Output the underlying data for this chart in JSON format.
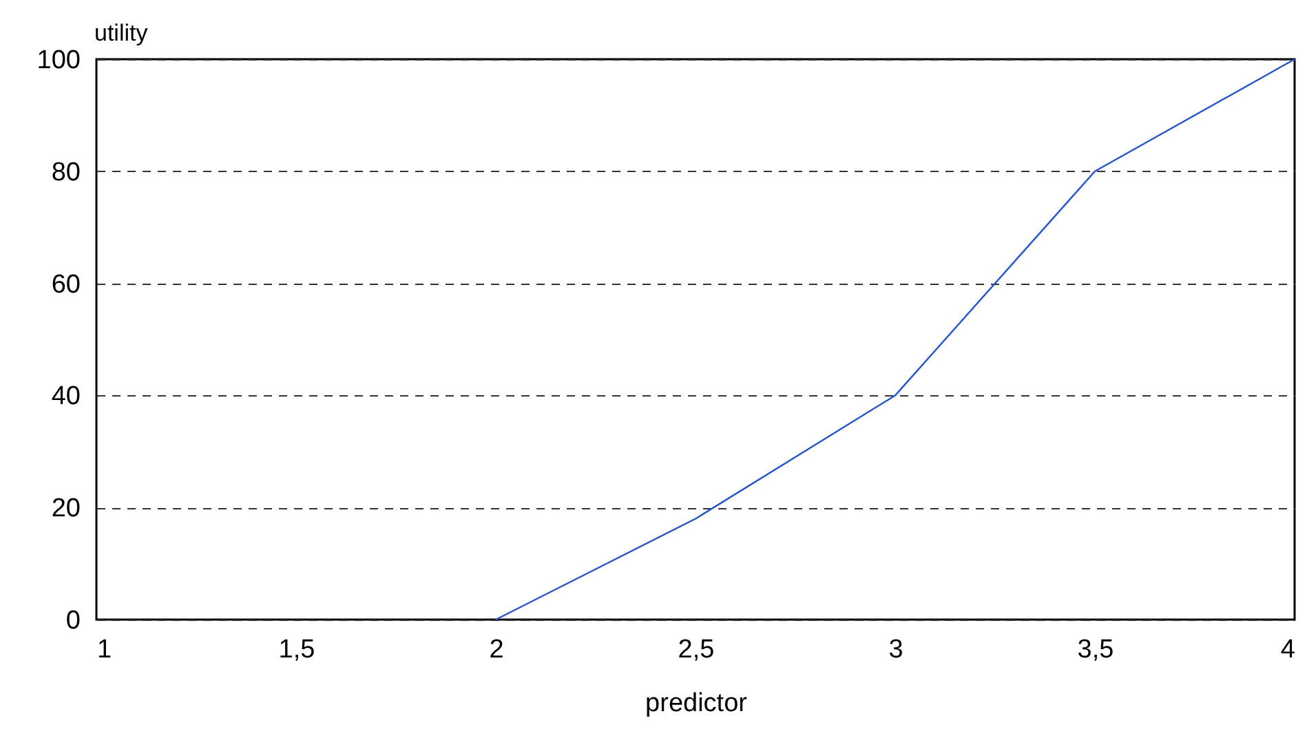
{
  "chart_data": {
    "type": "line",
    "xlabel": "predictor",
    "ylabel": "utility",
    "x": [
      2,
      2.5,
      3,
      3.5,
      4
    ],
    "series": [
      {
        "color": "#2255cc",
        "values": [
          0,
          18,
          40,
          80,
          100
        ]
      }
    ],
    "xlim": [
      1,
      4
    ],
    "xticks": [
      1,
      {
        "value": 1.5,
        "label": "1,5"
      },
      2,
      {
        "value": 2.5,
        "label": "2,5"
      },
      3,
      {
        "value": 3.5,
        "label": "3,5"
      },
      4
    ],
    "ylim": [
      0,
      100
    ],
    "yticks": [
      0,
      20,
      40,
      60,
      80,
      100
    ],
    "grid": "y",
    "line_style": "solid",
    "marker": "none"
  }
}
